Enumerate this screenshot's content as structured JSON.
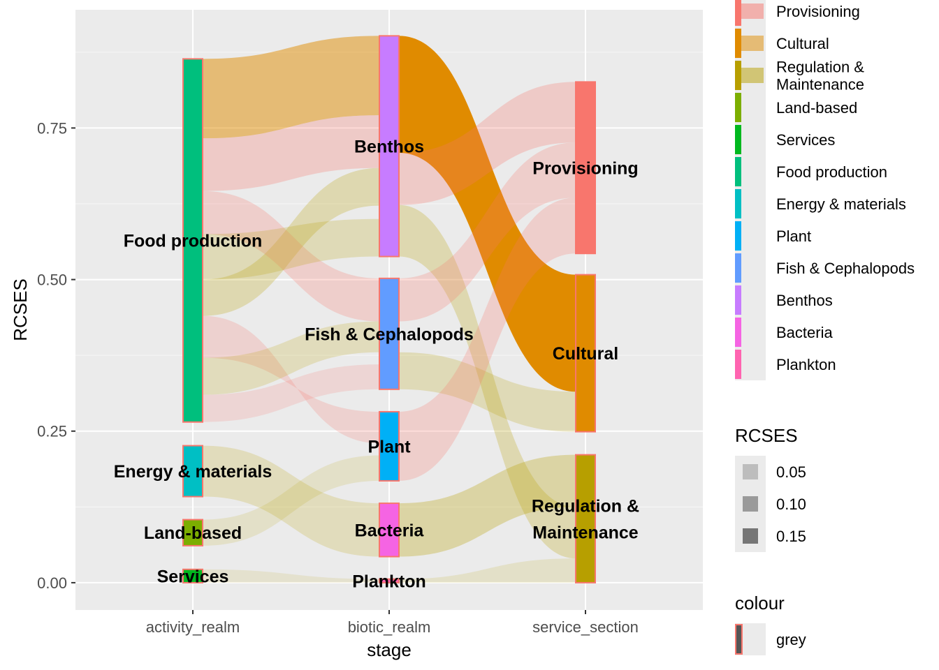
{
  "chart_data": {
    "type": "alluvial",
    "xlabel": "stage",
    "ylabel": "RCSES",
    "ylim": [
      -0.045,
      0.945
    ],
    "yticks": [
      {
        "value": 0.0,
        "label": "0.00"
      },
      {
        "value": 0.25,
        "label": "0.25"
      },
      {
        "value": 0.5,
        "label": "0.50"
      },
      {
        "value": 0.75,
        "label": "0.75"
      }
    ],
    "axes": [
      {
        "name": "activity_realm",
        "label": "activity_realm"
      },
      {
        "name": "biotic_realm",
        "label": "biotic_realm"
      },
      {
        "name": "service_section",
        "label": "service_section"
      }
    ],
    "strata": [
      {
        "axis": 0,
        "name": "Food production",
        "label": "Food production",
        "y0": 0.265,
        "y1": 0.864,
        "color": "#00BF7D"
      },
      {
        "axis": 0,
        "name": "Energy & materials",
        "label": "Energy & materials",
        "y0": 0.142,
        "y1": 0.226,
        "color": "#00BFC4"
      },
      {
        "axis": 0,
        "name": "Land-based",
        "label": "Land-based",
        "y0": 0.061,
        "y1": 0.104,
        "color": "#7CAE00"
      },
      {
        "axis": 0,
        "name": "Services",
        "label": "Services",
        "y0": 0.0,
        "y1": 0.022,
        "color": "#00B81F"
      },
      {
        "axis": 1,
        "name": "Benthos",
        "label": "Benthos",
        "y0": 0.538,
        "y1": 0.902,
        "color": "#C77CFF"
      },
      {
        "axis": 1,
        "name": "Fish & Cephalopods",
        "label": "Fish & Cephalopods",
        "y0": 0.319,
        "y1": 0.502,
        "color": "#619CFF"
      },
      {
        "axis": 1,
        "name": "Plant",
        "label": "Plant",
        "y0": 0.168,
        "y1": 0.282,
        "color": "#00B0F6"
      },
      {
        "axis": 1,
        "name": "Bacteria",
        "label": "Bacteria",
        "y0": 0.043,
        "y1": 0.131,
        "color": "#F564E3"
      },
      {
        "axis": 1,
        "name": "Plankton",
        "label": "Plankton",
        "y0": 0.0,
        "y1": 0.006,
        "color": "#FF64B0"
      },
      {
        "axis": 2,
        "name": "Provisioning",
        "label": "Provisioning",
        "y0": 0.543,
        "y1": 0.826,
        "color": "#F8766D"
      },
      {
        "axis": 2,
        "name": "Cultural",
        "label": "Cultural",
        "y0": 0.249,
        "y1": 0.508,
        "color": "#E08B00"
      },
      {
        "axis": 2,
        "name": "Regulation & Maintenance",
        "label": "Regulation &\nMaintenance",
        "y0": 0.0,
        "y1": 0.211,
        "color": "#B79F00"
      }
    ],
    "flows": [
      {
        "from_axis": 0,
        "to_axis": 1,
        "y0a": 0.733,
        "y1a": 0.864,
        "y0b": 0.771,
        "y1b": 0.902,
        "fill": "#E08B00",
        "alpha": 0.5
      },
      {
        "from_axis": 0,
        "to_axis": 1,
        "y0a": 0.646,
        "y1a": 0.733,
        "y0b": 0.684,
        "y1b": 0.771,
        "fill": "#F8766D",
        "alpha": 0.28
      },
      {
        "from_axis": 0,
        "to_axis": 1,
        "y0a": 0.44,
        "y1a": 0.5,
        "y0b": 0.622,
        "y1b": 0.684,
        "fill": "#B79F00",
        "alpha": 0.25
      },
      {
        "from_axis": 0,
        "to_axis": 1,
        "y0a": 0.575,
        "y1a": 0.646,
        "y0b": 0.431,
        "y1b": 0.502,
        "fill": "#F8766D",
        "alpha": 0.25
      },
      {
        "from_axis": 0,
        "to_axis": 1,
        "y0a": 0.5,
        "y1a": 0.575,
        "y0b": 0.538,
        "y1b": 0.6,
        "fill": "#B79F00",
        "alpha": 0.22
      },
      {
        "from_axis": 0,
        "to_axis": 1,
        "y0a": 0.371,
        "y1a": 0.44,
        "y0b": 0.282,
        "y1b": 0.23,
        "fill": "#F8766D",
        "alpha": 0.22
      },
      {
        "from_axis": 0,
        "to_axis": 1,
        "y0a": 0.31,
        "y1a": 0.371,
        "y0b": 0.38,
        "y1b": 0.431,
        "fill": "#B79F00",
        "alpha": 0.2
      },
      {
        "from_axis": 0,
        "to_axis": 1,
        "y0a": 0.265,
        "y1a": 0.31,
        "y0b": 0.319,
        "y1b": 0.36,
        "fill": "#F8766D",
        "alpha": 0.18
      },
      {
        "from_axis": 0,
        "to_axis": 1,
        "y0a": 0.142,
        "y1a": 0.226,
        "y0b": 0.043,
        "y1b": 0.131,
        "fill": "#B79F00",
        "alpha": 0.2
      },
      {
        "from_axis": 0,
        "to_axis": 1,
        "y0a": 0.061,
        "y1a": 0.104,
        "y0b": 0.168,
        "y1b": 0.21,
        "fill": "#B79F00",
        "alpha": 0.15
      },
      {
        "from_axis": 0,
        "to_axis": 1,
        "y0a": 0.0,
        "y1a": 0.022,
        "y0b": 0.0,
        "y1b": 0.006,
        "fill": "#B79F00",
        "alpha": 0.12
      },
      {
        "from_axis": 1,
        "to_axis": 2,
        "y0a": 0.709,
        "y1a": 0.902,
        "y0b": 0.315,
        "y1b": 0.508,
        "fill": "#E08B00",
        "alpha": 1.0
      },
      {
        "from_axis": 1,
        "to_axis": 2,
        "y0a": 0.623,
        "y1a": 0.709,
        "y0b": 0.726,
        "y1b": 0.826,
        "fill": "#F8766D",
        "alpha": 0.28
      },
      {
        "from_axis": 1,
        "to_axis": 2,
        "y0a": 0.538,
        "y1a": 0.623,
        "y0b": 0.04,
        "y1b": 0.125,
        "fill": "#B79F00",
        "alpha": 0.25
      },
      {
        "from_axis": 1,
        "to_axis": 2,
        "y0a": 0.431,
        "y1a": 0.502,
        "y0b": 0.635,
        "y1b": 0.726,
        "fill": "#F8766D",
        "alpha": 0.25
      },
      {
        "from_axis": 1,
        "to_axis": 2,
        "y0a": 0.319,
        "y1a": 0.38,
        "y0b": 0.249,
        "y1b": 0.315,
        "fill": "#B79F00",
        "alpha": 0.22
      },
      {
        "from_axis": 1,
        "to_axis": 2,
        "y0a": 0.168,
        "y1a": 0.282,
        "y0b": 0.543,
        "y1b": 0.635,
        "fill": "#F8766D",
        "alpha": 0.25
      },
      {
        "from_axis": 1,
        "to_axis": 2,
        "y0a": 0.043,
        "y1a": 0.131,
        "y0b": 0.125,
        "y1b": 0.211,
        "fill": "#B79F00",
        "alpha": 0.3
      },
      {
        "from_axis": 1,
        "to_axis": 2,
        "y0a": 0.0,
        "y1a": 0.006,
        "y0b": 0.0,
        "y1b": 0.04,
        "fill": "#B79F00",
        "alpha": 0.15
      }
    ],
    "legends": {
      "fill": [
        {
          "label": "Provisioning",
          "color": "#F8766D",
          "alpha": 0.5
        },
        {
          "label": "Cultural",
          "color": "#E08B00",
          "alpha": 0.5
        },
        {
          "label": "Regulation &\nMaintenance",
          "color": "#B79F00",
          "alpha": 0.5
        },
        {
          "label": "Land-based",
          "color": "#7CAE00",
          "alpha": 1
        },
        {
          "label": "Services",
          "color": "#00B81F",
          "alpha": 1
        },
        {
          "label": "Food production",
          "color": "#00BF7D",
          "alpha": 1
        },
        {
          "label": "Energy & materials",
          "color": "#00BFC4",
          "alpha": 1
        },
        {
          "label": "Plant",
          "color": "#00B0F6",
          "alpha": 1
        },
        {
          "label": "Fish & Cephalopods",
          "color": "#619CFF",
          "alpha": 1
        },
        {
          "label": "Benthos",
          "color": "#C77CFF",
          "alpha": 1
        },
        {
          "label": "Bacteria",
          "color": "#F564E3",
          "alpha": 1
        },
        {
          "label": "Plankton",
          "color": "#FF64B0",
          "alpha": 1
        }
      ],
      "alpha": {
        "title": "RCSES",
        "items": [
          {
            "label": "0.05",
            "shade": "#bdbdbd"
          },
          {
            "label": "0.10",
            "shade": "#9a9a9a"
          },
          {
            "label": "0.15",
            "shade": "#767676"
          }
        ]
      },
      "colour": {
        "title": "colour",
        "items": [
          {
            "label": "grey"
          }
        ]
      }
    },
    "colors": {
      "panel_background": "#EBEBEB",
      "grid_major": "#FFFFFF",
      "stratum_border": "#F8766D"
    }
  }
}
